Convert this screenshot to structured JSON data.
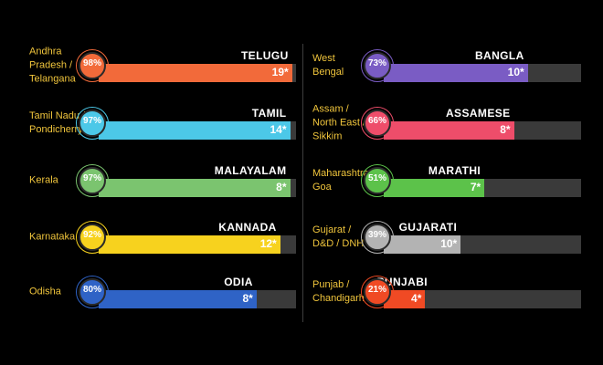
{
  "chart_data": {
    "type": "bar",
    "columns": [
      {
        "rows": [
          {
            "region": "Andhra\nPradesh /\nTelangana",
            "language": "TELUGU",
            "percent": "98%",
            "percent_value": 98,
            "count": "19*",
            "color": "#f26a3a"
          },
          {
            "region": "Tamil Nadu /\nPondicherry",
            "language": "TAMIL",
            "percent": "97%",
            "percent_value": 97,
            "count": "14*",
            "color": "#4cc8e8"
          },
          {
            "region": "Kerala",
            "language": "MALAYALAM",
            "percent": "97%",
            "percent_value": 97,
            "count": "8*",
            "color": "#7bc46f"
          },
          {
            "region": "Karnataka",
            "language": "KANNADA",
            "percent": "92%",
            "percent_value": 92,
            "count": "12*",
            "color": "#f7d21e"
          },
          {
            "region": "Odisha",
            "language": "ODIA",
            "percent": "80%",
            "percent_value": 80,
            "count": "8*",
            "color": "#2f63c6"
          }
        ]
      },
      {
        "rows": [
          {
            "region": "West\nBengal",
            "language": "BANGLA",
            "percent": "73%",
            "percent_value": 73,
            "count": "10*",
            "color": "#7a5cc4"
          },
          {
            "region": "Assam /\nNorth East /\nSikkim",
            "language": "ASSAMESE",
            "percent": "66%",
            "percent_value": 66,
            "count": "8*",
            "color": "#ee4d6a"
          },
          {
            "region": "Maharashtra /\nGoa",
            "language": "MARATHI",
            "percent": "51%",
            "percent_value": 51,
            "count": "7*",
            "color": "#5cc24a"
          },
          {
            "region": "Gujarat /\nD&D / DNH",
            "language": "GUJARATI",
            "percent": "39%",
            "percent_value": 39,
            "count": "10*",
            "color": "#b3b3b3"
          },
          {
            "region": "Punjab /\nChandigarh",
            "language": "PUNJABI",
            "percent": "21%",
            "percent_value": 21,
            "count": "4*",
            "color": "#f04a24"
          }
        ]
      }
    ]
  }
}
